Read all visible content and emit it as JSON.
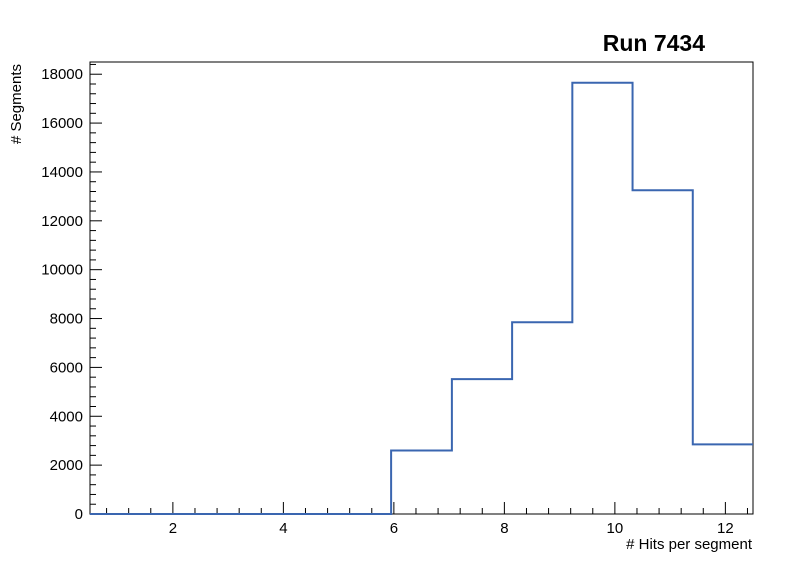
{
  "chart_data": {
    "type": "step-histogram",
    "title": "Run 7434",
    "xlabel": "# Hits per segment",
    "ylabel": "# Segments",
    "xlim": [
      0.5,
      12.5
    ],
    "ylim": [
      0,
      18500
    ],
    "bin_edges": [
      0.5,
      1.59,
      2.68,
      3.77,
      4.86,
      5.95,
      7.05,
      8.14,
      9.23,
      10.32,
      11.41,
      12.5
    ],
    "counts": [
      0,
      0,
      0,
      0,
      0,
      2600,
      5520,
      7850,
      17650,
      13250,
      2850
    ],
    "x_major_ticks": [
      2,
      4,
      6,
      8,
      10,
      12
    ],
    "x_minor_step": 0.4,
    "y_major_step": 2000,
    "y_minor_step": 400,
    "y_tick_labels": [
      "0",
      "2000",
      "4000",
      "6000",
      "8000",
      "10000",
      "12000",
      "14000",
      "16000",
      "18000"
    ],
    "line_color": "#3a66b0",
    "grid": false,
    "legend": null
  }
}
